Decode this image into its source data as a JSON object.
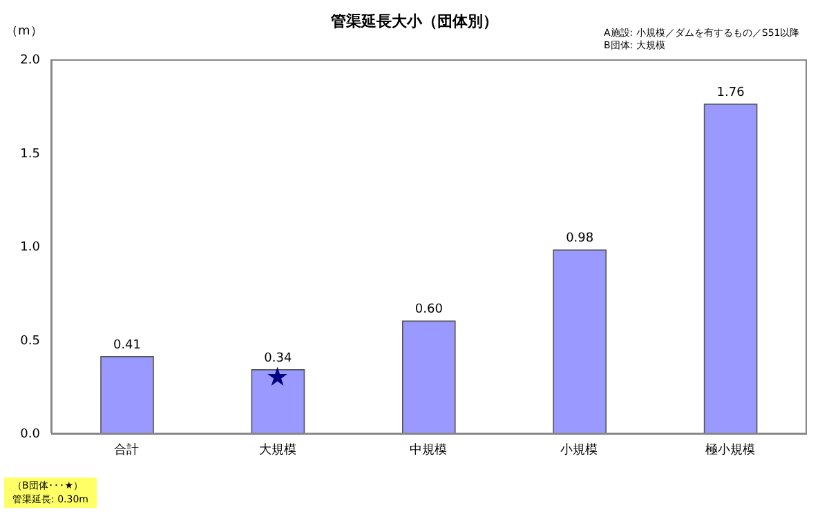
{
  "chart_data": {
    "type": "bar",
    "title": "管渠延長大小（団体別）",
    "ylabel": "（m）",
    "categories": [
      "合計",
      "大規模",
      "中規模",
      "小規模",
      "極小規模"
    ],
    "series": [
      {
        "color": "#9999ff",
        "values": [
          0.41,
          0.34,
          0.6,
          0.98,
          1.76
        ],
        "value_labels": [
          "0.41",
          "0.34",
          "0.60",
          "0.98",
          "1.76"
        ]
      },
      {
        "type": "scatter",
        "color": "#000080",
        "marker": "star",
        "x": [
          "大規模"
        ],
        "values": [
          0.3
        ]
      }
    ],
    "ylim": [
      0,
      2
    ],
    "yticks": [
      {
        "value": 0,
        "label": "0.0"
      },
      {
        "value": 0.5,
        "label": "0.5"
      },
      {
        "value": 1,
        "label": "1.0"
      },
      {
        "value": 1.5,
        "label": "1.5"
      },
      {
        "value": 2,
        "label": "2.0"
      }
    ],
    "grid": false,
    "annotations": [
      "A施設: 小規模／ダムを有するもの／S51以降",
      "B団体: 大規模",
      "（B団体･･･★）",
      "管渠延長: 0.30m"
    ]
  }
}
